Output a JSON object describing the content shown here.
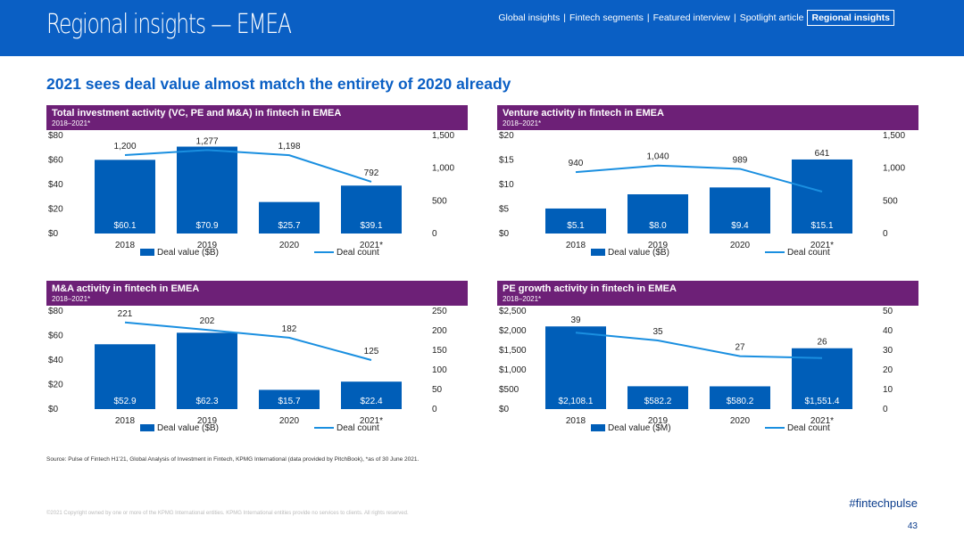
{
  "header": {
    "title": "Regional insights — EMEA",
    "nav": [
      {
        "label": "Global insights",
        "active": false
      },
      {
        "label": "Fintech segments",
        "active": false
      },
      {
        "label": "Featured interview",
        "active": false
      },
      {
        "label": "Spotlight article",
        "active": false
      },
      {
        "label": "Regional insights",
        "active": true
      }
    ]
  },
  "page_title": "2021 sees deal value almost match the entirety of 2020 already",
  "colors": {
    "bar": "#005eb8",
    "line": "#1a8fe0",
    "panel_header": "#6d2077",
    "topbar": "#0a5fc4"
  },
  "chart_data": [
    {
      "type": "bar+line",
      "title": "Total investment activity (VC, PE and M&A) in fintech in EMEA",
      "subtitle": "2018–2021*",
      "categories": [
        "2018",
        "2019",
        "2020",
        "2021*"
      ],
      "series": [
        {
          "name": "Deal value ($B)",
          "type": "bar",
          "axis": "left",
          "values": [
            60.1,
            70.9,
            25.7,
            39.1
          ],
          "labels": [
            "$60.1",
            "$70.9",
            "$25.7",
            "$39.1"
          ]
        },
        {
          "name": "Deal count",
          "type": "line",
          "axis": "right",
          "values": [
            1200,
            1277,
            1198,
            792
          ],
          "labels": [
            "1,200",
            "1,277",
            "1,198",
            "792"
          ]
        }
      ],
      "left_axis": {
        "min": 0,
        "max": 80,
        "ticks": [
          0,
          20,
          40,
          60,
          80
        ],
        "tick_labels": [
          "$0",
          "$20",
          "$40",
          "$60",
          "$80"
        ]
      },
      "right_axis": {
        "min": 0,
        "max": 1500,
        "ticks": [
          0,
          500,
          1000,
          1500
        ],
        "tick_labels": [
          "0",
          "500",
          "1,000",
          "1,500"
        ]
      },
      "legend": [
        "Deal value ($B)",
        "Deal count"
      ]
    },
    {
      "type": "bar+line",
      "title": "Venture activity in fintech in EMEA",
      "subtitle": "2018–2021*",
      "categories": [
        "2018",
        "2019",
        "2020",
        "2021*"
      ],
      "series": [
        {
          "name": "Deal value ($B)",
          "type": "bar",
          "axis": "left",
          "values": [
            5.1,
            8.0,
            9.4,
            15.1
          ],
          "labels": [
            "$5.1",
            "$8.0",
            "$9.4",
            "$15.1"
          ]
        },
        {
          "name": "Deal count",
          "type": "line",
          "axis": "right",
          "values": [
            940,
            1040,
            989,
            641
          ],
          "labels": [
            "940",
            "1,040",
            "989",
            "641"
          ]
        }
      ],
      "left_axis": {
        "min": 0,
        "max": 20,
        "ticks": [
          0,
          5,
          10,
          15,
          20
        ],
        "tick_labels": [
          "$0",
          "$5",
          "$10",
          "$15",
          "$20"
        ]
      },
      "right_axis": {
        "min": 0,
        "max": 1500,
        "ticks": [
          0,
          500,
          1000,
          1500
        ],
        "tick_labels": [
          "0",
          "500",
          "1,000",
          "1,500"
        ]
      },
      "legend": [
        "Deal value ($B)",
        "Deal count"
      ]
    },
    {
      "type": "bar+line",
      "title": "M&A activity in fintech in EMEA",
      "subtitle": "2018–2021*",
      "categories": [
        "2018",
        "2019",
        "2020",
        "2021*"
      ],
      "series": [
        {
          "name": "Deal value ($B)",
          "type": "bar",
          "axis": "left",
          "values": [
            52.9,
            62.3,
            15.7,
            22.4
          ],
          "labels": [
            "$52.9",
            "$62.3",
            "$15.7",
            "$22.4"
          ]
        },
        {
          "name": "Deal count",
          "type": "line",
          "axis": "right",
          "values": [
            221,
            202,
            182,
            125
          ],
          "labels": [
            "221",
            "202",
            "182",
            "125"
          ]
        }
      ],
      "left_axis": {
        "min": 0,
        "max": 80,
        "ticks": [
          0,
          20,
          40,
          60,
          80
        ],
        "tick_labels": [
          "$0",
          "$20",
          "$40",
          "$60",
          "$80"
        ]
      },
      "right_axis": {
        "min": 0,
        "max": 250,
        "ticks": [
          0,
          50,
          100,
          150,
          200,
          250
        ],
        "tick_labels": [
          "0",
          "50",
          "100",
          "150",
          "200",
          "250"
        ]
      },
      "legend": [
        "Deal value ($B)",
        "Deal count"
      ]
    },
    {
      "type": "bar+line",
      "title": "PE growth activity in fintech in EMEA",
      "subtitle": "2018–2021*",
      "categories": [
        "2018",
        "2019",
        "2020",
        "2021*"
      ],
      "series": [
        {
          "name": "Deal value ($M)",
          "type": "bar",
          "axis": "left",
          "values": [
            2108.1,
            582.2,
            580.2,
            1551.4
          ],
          "labels": [
            "$2,108.1",
            "$582.2",
            "$580.2",
            "$1,551.4"
          ]
        },
        {
          "name": "Deal count",
          "type": "line",
          "axis": "right",
          "values": [
            39,
            35,
            27,
            26
          ],
          "labels": [
            "39",
            "35",
            "27",
            "26"
          ]
        }
      ],
      "left_axis": {
        "min": 0,
        "max": 2500,
        "ticks": [
          0,
          500,
          1000,
          1500,
          2000,
          2500
        ],
        "tick_labels": [
          "$0",
          "$500",
          "$1,000",
          "$1,500",
          "$2,000",
          "$2,500"
        ]
      },
      "right_axis": {
        "min": 0,
        "max": 50,
        "ticks": [
          0,
          10,
          20,
          30,
          40,
          50
        ],
        "tick_labels": [
          "0",
          "10",
          "20",
          "30",
          "40",
          "50"
        ]
      },
      "legend": [
        "Deal value ($M)",
        "Deal count"
      ]
    }
  ],
  "source": "Source: Pulse of Fintech H1’21, Global Analysis of Investment in Fintech, KPMG International (data provided by PitchBook), *as of 30 June 2021.",
  "copyright": "©2021 Copyright owned by one or more of the KPMG International entities. KPMG International entities provide no services to clients. All rights reserved.",
  "hashtag": "#fintechpulse",
  "page_number": "43"
}
